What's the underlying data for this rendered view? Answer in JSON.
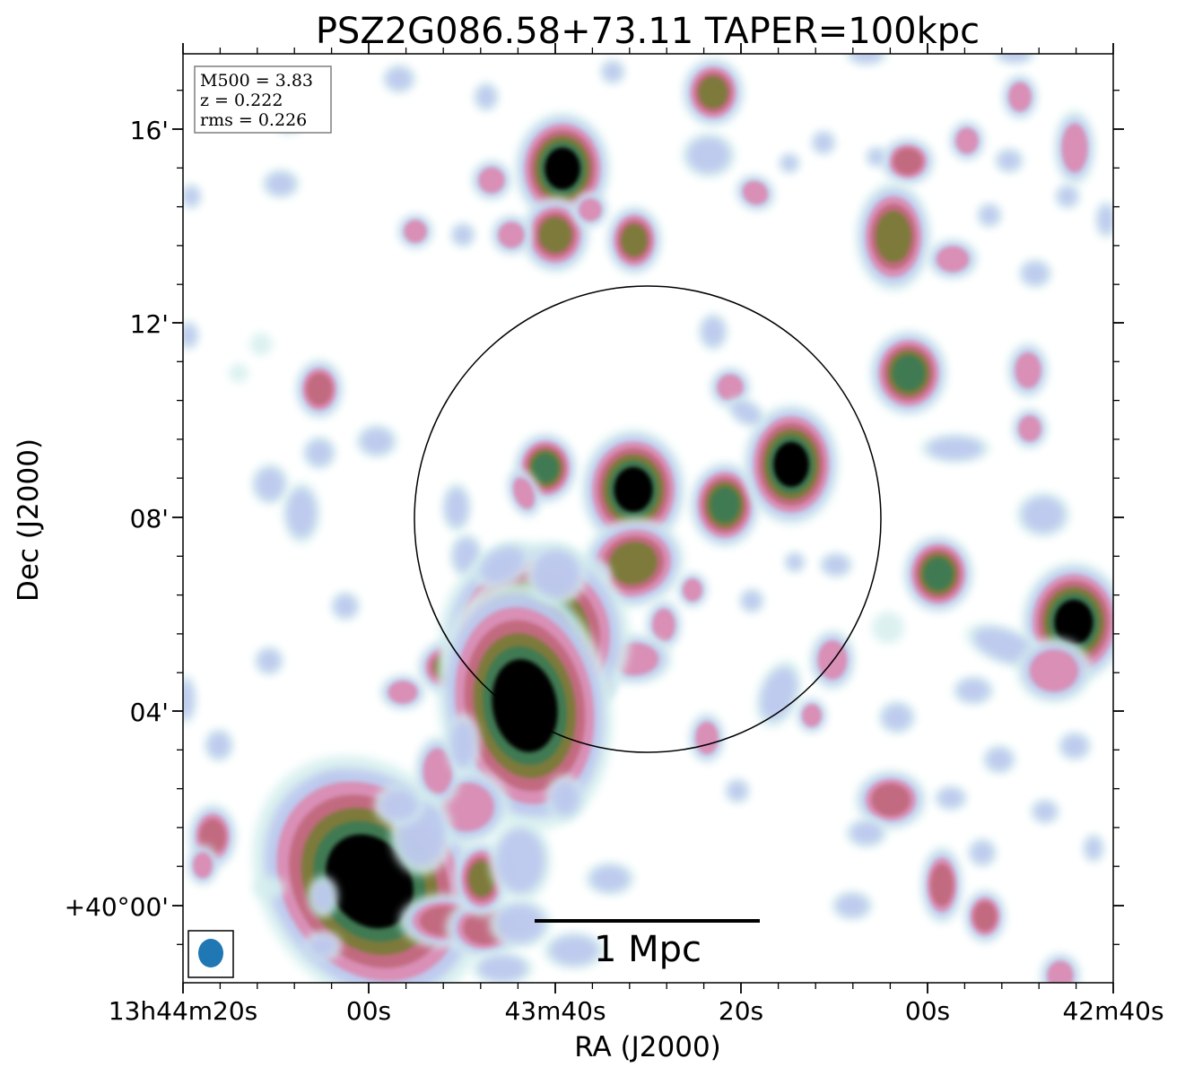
{
  "title": "PSZ2G086.58+73.11 TAPER=100kpc",
  "axes": {
    "xlabel": "RA (J2000)",
    "ylabel": "Dec (J2000)",
    "xticks": [
      "13h44m20s",
      "00s",
      "43m40s",
      "20s",
      "00s",
      "42m40s"
    ],
    "yticks": [
      "16'",
      "12'",
      "08'",
      "04'",
      "+40°00'"
    ]
  },
  "info_box": {
    "line1": "M500 = 3.83",
    "line2": "z = 0.222",
    "line3": "rms = 0.226"
  },
  "scale_bar": {
    "label": "1 Mpc"
  },
  "colors": {
    "colormap": "cubehelix-like",
    "faint": "#d5efee",
    "low": "#b9c4ee",
    "mid": "#d98fb6",
    "mid_high": "#c26b80",
    "high": "#7d7a3a",
    "green": "#3f7a52",
    "peak": "#000000",
    "beam": "#1f77b4"
  }
}
